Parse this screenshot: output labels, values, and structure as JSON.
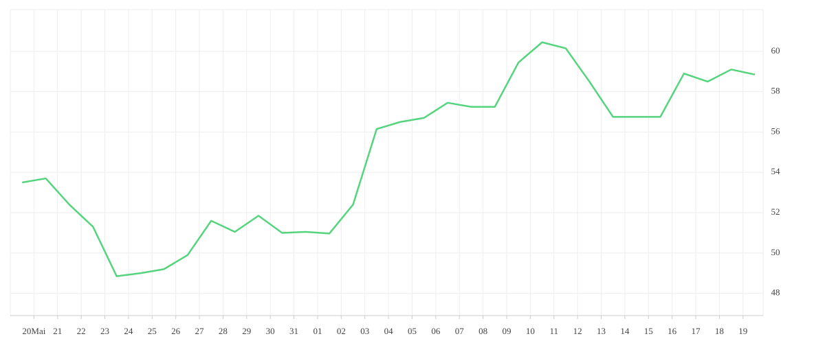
{
  "chart_data": {
    "type": "line",
    "x": [
      -0.5,
      0.5,
      1.5,
      2.5,
      3.5,
      4.5,
      5.5,
      6.5,
      7.5,
      8.5,
      9.5,
      10.5,
      11.5,
      12.5,
      13.5,
      14.5,
      15.5,
      16.5,
      17.5,
      18.5,
      19.5,
      20.5,
      21.5,
      22.5,
      23.5,
      24.5,
      25.5,
      26.5,
      27.5,
      28.5,
      29.5,
      30.5
    ],
    "series": [
      {
        "color": "#55d47e",
        "values": [
          53.5,
          53.7,
          52.4,
          51.3,
          48.85,
          49.0,
          49.2,
          49.9,
          51.6,
          51.05,
          51.85,
          51.0,
          51.05,
          50.97,
          52.4,
          56.15,
          56.5,
          56.7,
          57.45,
          57.25,
          57.25,
          59.45,
          60.45,
          60.15,
          58.5,
          56.75,
          56.75,
          56.75,
          58.9,
          58.5,
          59.1,
          58.85
        ]
      }
    ],
    "xlim": [
      -1,
      30.85
    ],
    "xticks": [
      {
        "value": 0,
        "label": "20Mai"
      },
      {
        "value": 1,
        "label": "21"
      },
      {
        "value": 2,
        "label": "22"
      },
      {
        "value": 3,
        "label": "23"
      },
      {
        "value": 4,
        "label": "24"
      },
      {
        "value": 5,
        "label": "25"
      },
      {
        "value": 6,
        "label": "26"
      },
      {
        "value": 7,
        "label": "27"
      },
      {
        "value": 8,
        "label": "28"
      },
      {
        "value": 9,
        "label": "29"
      },
      {
        "value": 10,
        "label": "30"
      },
      {
        "value": 11,
        "label": "31"
      },
      {
        "value": 12,
        "label": "01"
      },
      {
        "value": 13,
        "label": "02"
      },
      {
        "value": 14,
        "label": "03"
      },
      {
        "value": 15,
        "label": "04"
      },
      {
        "value": 16,
        "label": "05"
      },
      {
        "value": 17,
        "label": "06"
      },
      {
        "value": 18,
        "label": "07"
      },
      {
        "value": 19,
        "label": "08"
      },
      {
        "value": 20,
        "label": "09"
      },
      {
        "value": 21,
        "label": "10"
      },
      {
        "value": 22,
        "label": "11"
      },
      {
        "value": 23,
        "label": "12"
      },
      {
        "value": 24,
        "label": "13"
      },
      {
        "value": 25,
        "label": "14"
      },
      {
        "value": 26,
        "label": "15"
      },
      {
        "value": 27,
        "label": "16"
      },
      {
        "value": 28,
        "label": "17"
      },
      {
        "value": 29,
        "label": "18"
      },
      {
        "value": 30,
        "label": "19"
      }
    ],
    "ylim": [
      46.9,
      62.07
    ],
    "yticks": [
      48,
      50,
      52,
      54,
      56,
      58,
      60
    ],
    "grid": true
  }
}
